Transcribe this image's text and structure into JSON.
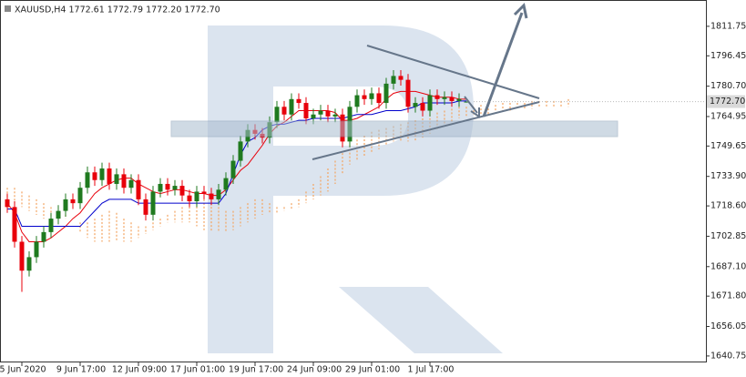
{
  "chart_data": {
    "type": "candlestick",
    "title": "XAUUSD,H4  1772.61 1772.79 1772.20 1772.70",
    "categories": [
      null,
      null,
      "5 Jun 2020",
      null,
      null,
      null,
      null,
      null,
      null,
      null,
      "9 Jun 17:00",
      null,
      null,
      null,
      null,
      null,
      null,
      null,
      "12 Jun 09:00",
      null,
      null,
      null,
      null,
      null,
      null,
      null,
      "17 Jun 01:00",
      null,
      null,
      null,
      null,
      null,
      null,
      null,
      "19 Jun 17:00",
      null,
      null,
      null,
      null,
      null,
      null,
      null,
      "24 Jun 09:00",
      null,
      null,
      null,
      null,
      null,
      null,
      null,
      "29 Jun 01:00",
      null,
      null,
      null,
      null,
      null,
      null,
      null,
      "1 Jul 17:00",
      null,
      null,
      null,
      null,
      null,
      null,
      null,
      null,
      null,
      null,
      null,
      null,
      null,
      null,
      null,
      null,
      null,
      null,
      null
    ],
    "open": [
      1722,
      1718,
      1700,
      1685,
      1692,
      1700,
      1705,
      1712,
      1716,
      1722,
      1720,
      1728,
      1736,
      1732,
      1738,
      1730,
      1735,
      1728,
      1732,
      1722,
      1714,
      1726,
      1730,
      1727,
      1729,
      1724,
      1721,
      1726,
      1725,
      1722,
      1727,
      1733,
      1742,
      1752,
      1758,
      1756,
      1754,
      1762,
      1770,
      1766,
      1774,
      1772,
      1764,
      1766,
      1768,
      1765,
      1766,
      1752,
      1770,
      1776,
      1774,
      1777,
      1772,
      1782,
      1786,
      1784,
      1770,
      1772,
      1768,
      1776,
      1774,
      1775,
      1773,
      1772.61,
      null,
      null,
      null,
      null,
      null,
      null,
      null,
      null,
      null,
      null,
      null,
      null,
      null,
      null
    ],
    "high": [
      1725,
      1721,
      1703,
      1695,
      1703,
      1708,
      1715,
      1719,
      1725,
      1725,
      1731,
      1739,
      1739,
      1741,
      1741,
      1738,
      1738,
      1735,
      1735,
      1725,
      1729,
      1733,
      1733,
      1732,
      1732,
      1727,
      1729,
      1729,
      1728,
      1730,
      1736,
      1745,
      1755,
      1761,
      1761,
      1759,
      1765,
      1773,
      1773,
      1777,
      1777,
      1775,
      1769,
      1771,
      1771,
      1769,
      1769,
      1773,
      1779,
      1779,
      1780,
      1780,
      1785,
      1789,
      1789,
      1787,
      1775,
      1775,
      1779,
      1779,
      1778,
      1778,
      1777,
      1772.79,
      null,
      null,
      null,
      null,
      null,
      null,
      null,
      null,
      null,
      null,
      null,
      null,
      null,
      null
    ],
    "low": [
      1715,
      1697,
      1674,
      1682,
      1689,
      1697,
      1702,
      1709,
      1713,
      1717,
      1717,
      1725,
      1729,
      1729,
      1727,
      1727,
      1725,
      1725,
      1719,
      1711,
      1711,
      1723,
      1724,
      1724,
      1721,
      1718,
      1718,
      1722,
      1719,
      1719,
      1724,
      1730,
      1739,
      1749,
      1753,
      1751,
      1751,
      1759,
      1763,
      1763,
      1769,
      1761,
      1761,
      1763,
      1762,
      1762,
      1749,
      1749,
      1767,
      1771,
      1771,
      1769,
      1769,
      1779,
      1781,
      1767,
      1767,
      1765,
      1765,
      1771,
      1771,
      1770,
      1770,
      1772.2,
      null,
      null,
      null,
      null,
      null,
      null,
      null,
      null,
      null,
      null,
      null,
      null,
      null,
      null
    ],
    "close": [
      1718,
      1700,
      1685,
      1692,
      1700,
      1705,
      1712,
      1716,
      1722,
      1720,
      1728,
      1736,
      1732,
      1738,
      1730,
      1735,
      1728,
      1732,
      1722,
      1714,
      1726,
      1730,
      1727,
      1729,
      1724,
      1721,
      1726,
      1725,
      1722,
      1727,
      1733,
      1742,
      1752,
      1758,
      1756,
      1754,
      1762,
      1770,
      1766,
      1774,
      1772,
      1764,
      1766,
      1768,
      1765,
      1766,
      1752,
      1770,
      1776,
      1774,
      1777,
      1772,
      1782,
      1786,
      1784,
      1770,
      1772,
      1768,
      1776,
      1774,
      1775,
      1773,
      1774,
      1772.7,
      null,
      null,
      null,
      null,
      null,
      null,
      null,
      null,
      null,
      null,
      null,
      null,
      null,
      null
    ],
    "up_color": "#1f7a1f",
    "down_color": "#e8000b",
    "lines": [
      {
        "color": "#e8000b",
        "values": [
          1720,
          1715,
          1705,
          1700,
          1700,
          1700,
          1702,
          1705,
          1708,
          1712,
          1715,
          1720,
          1725,
          1728,
          1730,
          1732,
          1733,
          1733,
          1730,
          1728,
          1726,
          1725,
          1726,
          1727,
          1727,
          1726,
          1725,
          1725,
          1724,
          1724,
          1727,
          1732,
          1737,
          1740,
          1745,
          1750,
          1756,
          1760,
          1762,
          1765,
          1768,
          1768,
          1768,
          1768,
          1768,
          1767,
          1763,
          1763,
          1764,
          1766,
          1768,
          1770,
          1774,
          1777,
          1778,
          1778,
          1778,
          1777,
          1776,
          1775,
          1775,
          1775,
          1774,
          1774,
          null,
          null,
          null,
          null,
          null,
          null,
          null,
          null,
          null,
          null,
          null,
          null,
          null,
          null
        ]
      },
      {
        "color": "#0000cc",
        "values": [
          1717,
          1717,
          1708,
          1708,
          1708,
          1708,
          1708,
          1708,
          1708,
          1708,
          1708,
          1712,
          1716,
          1720,
          1722,
          1722,
          1722,
          1722,
          1720,
          1720,
          1720,
          1720,
          1720,
          1720,
          1720,
          1720,
          1720,
          1720,
          1720,
          1720,
          1725,
          1735,
          1745,
          1752,
          1754,
          1758,
          1760,
          1761,
          1761,
          1762,
          1763,
          1763,
          1764,
          1764,
          1764,
          1764,
          1764,
          1765,
          1766,
          1766,
          1766,
          1767,
          1768,
          1768,
          1768,
          1769,
          1770,
          1772,
          1772,
          1772,
          1772,
          1772,
          1773,
          1773,
          null,
          null,
          null,
          null,
          null,
          null,
          null,
          null,
          null,
          null,
          null,
          null,
          null,
          null
        ]
      }
    ],
    "cloud": {
      "color": "#f4a460",
      "span_a": [
        1728,
        1728,
        1726,
        1724,
        1722,
        1720,
        1718,
        1716,
        1714,
        1712,
        1710,
        1710,
        1712,
        1714,
        1716,
        1715,
        1712,
        1710,
        1708,
        1708,
        1710,
        1712,
        1714,
        1716,
        1718,
        1720,
        1722,
        1722,
        1720,
        1718,
        1716,
        1716,
        1718,
        1720,
        1722,
        1722,
        1720,
        1718,
        1718,
        1720,
        1722,
        1726,
        1730,
        1734,
        1738,
        1742,
        1746,
        1750,
        1753,
        1755,
        1757,
        1758,
        1759,
        1760,
        1761,
        1762,
        1763,
        1764,
        1766,
        1767,
        1768,
        1769,
        1770,
        1770,
        1770,
        1771,
        1771,
        1771,
        1772,
        1772,
        1772,
        1772,
        1773,
        1773,
        1773,
        1773,
        1773,
        1774
      ],
      "span_b": [
        1722,
        1720,
        1718,
        1716,
        1714,
        1712,
        1712,
        1712,
        1712,
        1712,
        1705,
        1702,
        1700,
        1700,
        1700,
        1700,
        1700,
        1700,
        1702,
        1704,
        1706,
        1708,
        1710,
        1710,
        1710,
        1710,
        1708,
        1706,
        1705,
        1705,
        1705,
        1706,
        1708,
        1710,
        1712,
        1714,
        1715,
        1715,
        1716,
        1717,
        1718,
        1720,
        1722,
        1724,
        1726,
        1730,
        1735,
        1740,
        1742,
        1744,
        1746,
        1748,
        1750,
        1752,
        1752,
        1752,
        1752,
        1754,
        1756,
        1758,
        1760,
        1762,
        1764,
        1765,
        1766,
        1766,
        1766,
        1768,
        1768,
        1768,
        1769,
        1769,
        1769,
        1770,
        1770,
        1770,
        1770,
        1770
      ]
    },
    "last_price": {
      "value": 1772.7,
      "label": "1772.70"
    },
    "ylim": [
      1637.4,
      1825.4
    ],
    "yticks": [
      1811.75,
      1796.45,
      {
        "value": 1780.7,
        "label": "1780.70"
      },
      1764.95,
      1749.65,
      {
        "value": 1733.9,
        "label": "1733.90"
      },
      {
        "value": 1718.6,
        "label": "1718.60"
      },
      1702.85,
      {
        "value": 1687.1,
        "label": "1687.10"
      },
      {
        "value": 1671.8,
        "label": "1671.80"
      },
      1656.05,
      1640.75
    ],
    "grid": false
  }
}
